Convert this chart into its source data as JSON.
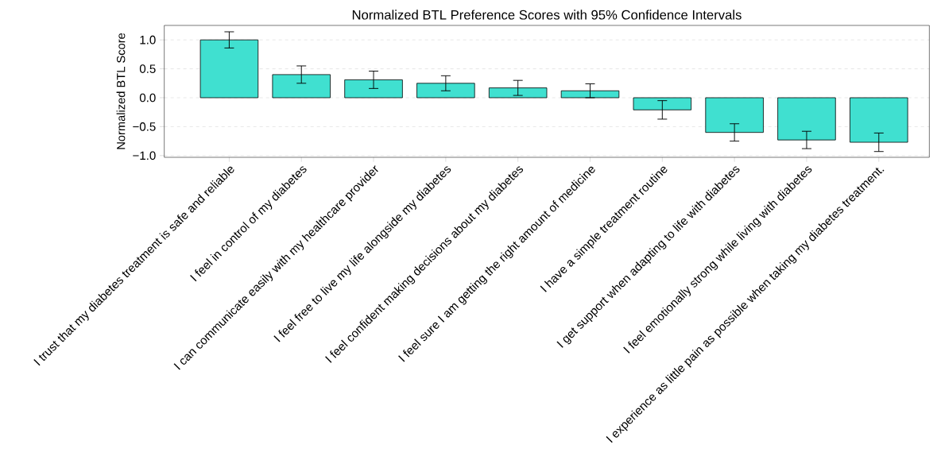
{
  "chart_data": {
    "type": "bar",
    "title": "Normalized BTL Preference Scores with 95% Confidence Intervals",
    "ylabel": "Normalized BTL Score",
    "categories": [
      "I trust that my diabetes treatment is safe and reliable",
      "I feel in control of my diabetes",
      "I can communicate easily with my healthcare provider",
      "I feel free to live my life alongside my diabetes",
      "I feel confident making decisions about my diabetes",
      "I feel sure I am getting the right amount of medicine",
      "I have a simple treatment routine",
      "I get support when adapting to life with diabetes",
      "I feel emotionally strong while living with diabetes",
      "I experience as little pain as possible when taking my diabetes treatment."
    ],
    "values": [
      1.0,
      0.4,
      0.31,
      0.25,
      0.17,
      0.12,
      -0.21,
      -0.6,
      -0.73,
      -0.77
    ],
    "errors": [
      0.14,
      0.15,
      0.15,
      0.13,
      0.13,
      0.12,
      0.16,
      0.15,
      0.15,
      0.16
    ],
    "color": "#40e0d0",
    "ylim": [
      -1.03,
      1.25
    ],
    "yticks": [
      {
        "value": -1.0,
        "label": "−1.0"
      },
      {
        "value": -0.5,
        "label": "−0.5"
      },
      {
        "value": 0.0,
        "label": "0.0"
      },
      {
        "value": 0.5,
        "label": "0.5"
      },
      {
        "value": 1.0,
        "label": "1.0"
      }
    ],
    "grid": "y"
  }
}
